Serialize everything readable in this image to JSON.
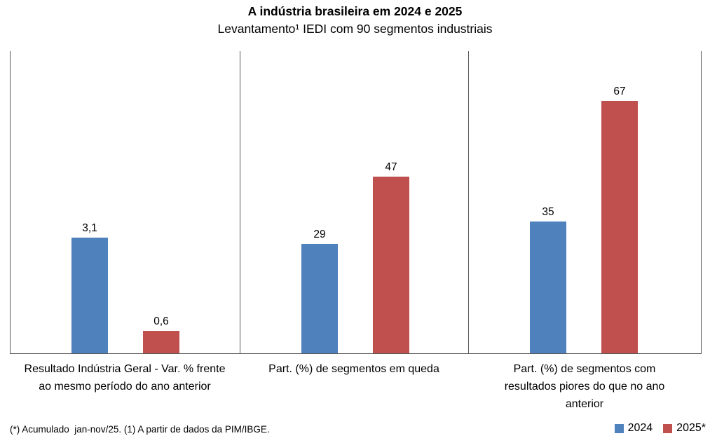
{
  "header": {
    "title": "A indústria brasileira em 2024 e 2025",
    "subtitle": "Levantamento¹ IEDI com 90 segmentos industriais"
  },
  "chart_data": {
    "type": "bar",
    "title": "A indústria brasileira em 2024 e 2025",
    "subtitle": "Levantamento¹ IEDI com 90 segmentos industriais",
    "grid": false,
    "series": [
      {
        "name": "2024",
        "color": "#4F81BD"
      },
      {
        "name": "2025*",
        "color": "#C0504D"
      }
    ],
    "panels": [
      {
        "category": "Resultado Indústria Geral - Var. % frente ao mesmo período do ano anterior",
        "values": [
          3.1,
          0.6
        ],
        "value_labels": [
          "3,1",
          "0,6"
        ],
        "ylim": [
          0,
          8.1
        ]
      },
      {
        "category": "Part. (%) de segmentos em queda",
        "values": [
          29,
          47
        ],
        "value_labels": [
          "29",
          "47"
        ],
        "ylim": [
          0,
          80.3
        ]
      },
      {
        "category": "Part. (%) de segmentos com resultados piores do que no ano anterior",
        "values": [
          35,
          67
        ],
        "value_labels": [
          "35",
          "67"
        ],
        "ylim": [
          0,
          80.3
        ]
      }
    ],
    "legend": {
      "position": "bottom-right",
      "entries": [
        {
          "label": "2024",
          "color": "#4F81BD"
        },
        {
          "label": "2025*",
          "color": "#C0504D"
        }
      ]
    }
  },
  "footnote": {
    "text": "(*) Acumulado  jan-nov/25. (1) A partir de dados da PIM/IBGE."
  },
  "colors": {
    "bar_2024": "#4F81BD",
    "bar_2025": "#C0504D",
    "axis_line": "#595959",
    "text": "#000000",
    "background": "#ffffff"
  }
}
